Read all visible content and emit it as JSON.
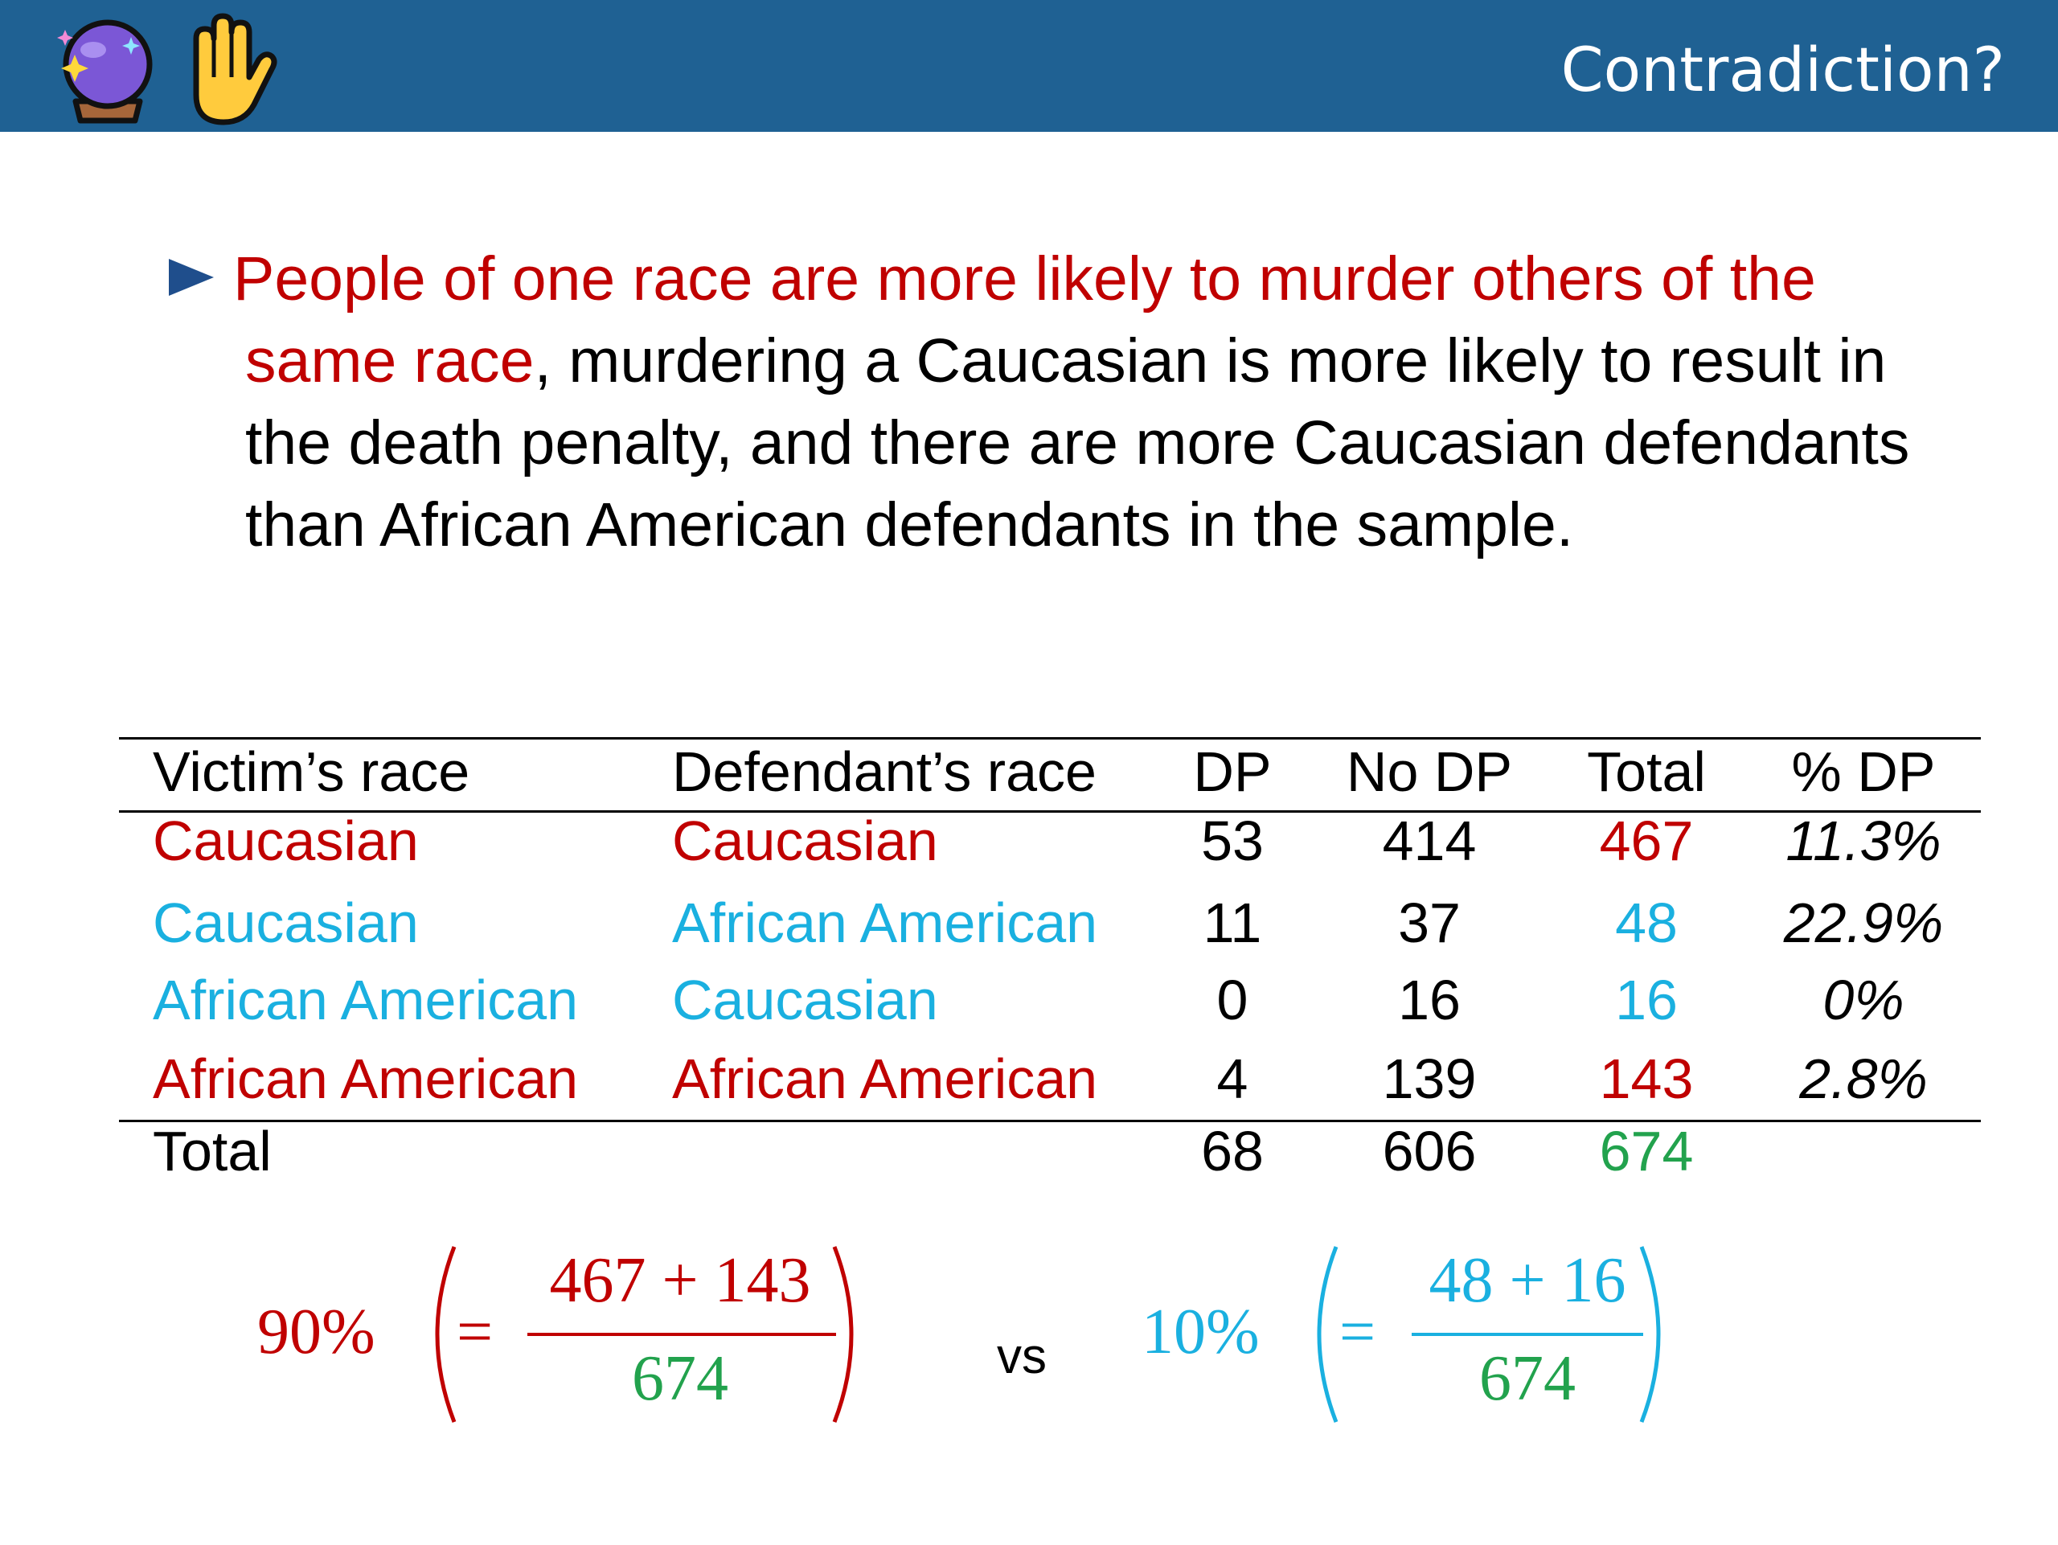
{
  "header": {
    "title": "Contradiction?",
    "icons": [
      "crystal-ball-icon",
      "raised-hand-icon"
    ],
    "color": "#1f6193"
  },
  "bullet": {
    "highlight": "People of one race are more likely to murder others of the same race",
    "rest": ", murdering a Caucasian is more likely to result in the death penalty, and there are more Caucasian defendants than African American defendants in the sample."
  },
  "table": {
    "headers": [
      "Victim’s race",
      "Defendant’s race",
      "DP",
      "No DP",
      "Total",
      "% DP"
    ],
    "rows": [
      {
        "victim": "Caucasian",
        "defendant": "Caucasian",
        "dp": "53",
        "nodp": "414",
        "total": "467",
        "pct": "11.3%",
        "color": "#c00000"
      },
      {
        "victim": "Caucasian",
        "defendant": "African American",
        "dp": "11",
        "nodp": "37",
        "total": "48",
        "pct": "22.9%",
        "color": "#1ab0e0"
      },
      {
        "victim": "African American",
        "defendant": "Caucasian",
        "dp": "0",
        "nodp": "16",
        "total": "16",
        "pct": "0%",
        "color": "#1ab0e0"
      },
      {
        "victim": "African American",
        "defendant": "African American",
        "dp": "4",
        "nodp": "139",
        "total": "143",
        "pct": "2.8%",
        "color": "#c00000"
      }
    ],
    "total_row": {
      "label": "Total",
      "dp": "68",
      "nodp": "606",
      "total": "674"
    }
  },
  "formulas": {
    "left": {
      "percent": "90%",
      "eq": "=",
      "numerator": "467 + 143",
      "denominator": "674"
    },
    "vs": "vs",
    "right": {
      "percent": "10%",
      "eq": "=",
      "numerator": "48 + 16",
      "denominator": "674"
    }
  },
  "colors": {
    "red": "#c00000",
    "blue": "#1ab0e0",
    "green": "#22a24d"
  }
}
